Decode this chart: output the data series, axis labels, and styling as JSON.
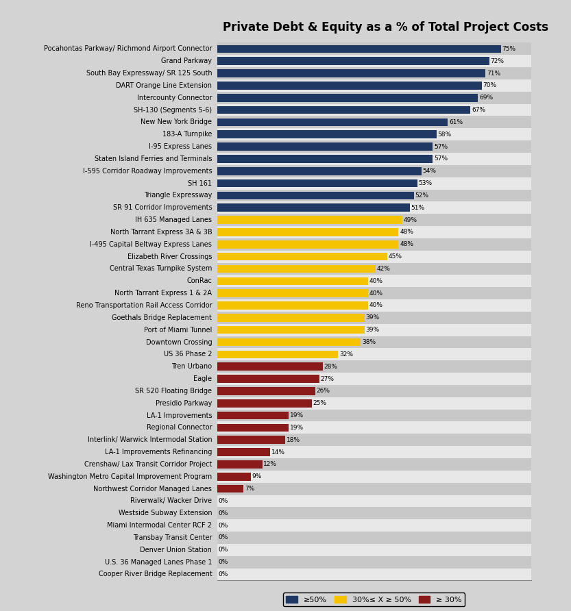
{
  "title": "Private Debt & Equity as a % of Total Project Costs",
  "categories": [
    "Pocahontas Parkway/ Richmond Airport Connector",
    "Grand Parkway",
    "South Bay Expressway/ SR 125 South",
    "DART Orange Line Extension",
    "Intercounty Connector",
    "SH-130 (Segments 5-6)",
    "New New York Bridge",
    "183-A Turnpike",
    "I-95 Express Lanes",
    "Staten Island Ferries and Terminals",
    "I-595 Corridor Roadway Improvements",
    "SH 161",
    "Triangle Expressway",
    "SR 91 Corridor Improvements",
    "IH 635 Managed Lanes",
    "North Tarrant Express 3A & 3B",
    "I-495 Capital Beltway Express Lanes",
    "Elizabeth River Crossings",
    "Central Texas Turnpike System",
    "ConRac",
    "North Tarrant Express 1 & 2A",
    "Reno Transportation Rail Access Corridor",
    "Goethals Bridge Replacement",
    "Port of Miami Tunnel",
    "Downtown Crossing",
    "US 36 Phase 2",
    "Tren Urbano",
    "Eagle",
    "SR 520 Floating Bridge",
    "Presidio Parkway",
    "LA-1 Improvements",
    "Regional Connector",
    "Interlink/ Warwick Intermodal Station",
    "LA-1 Improvements Refinancing",
    "Crenshaw/ Lax Transit Corridor Project",
    "Washington Metro Capital Improvement Program",
    "Northwest Corridor Managed Lanes",
    "Riverwalk/ Wacker Drive",
    "Westside Subway Extension",
    "Miami Intermodal Center RCF 2",
    "Transbay Transit Center",
    "Denver Union Station",
    "U.S. 36 Managed Lanes Phase 1",
    "Cooper River Bridge Replacement"
  ],
  "values": [
    75,
    72,
    71,
    70,
    69,
    67,
    61,
    58,
    57,
    57,
    54,
    53,
    52,
    51,
    49,
    48,
    48,
    45,
    42,
    40,
    40,
    40,
    39,
    39,
    38,
    32,
    28,
    27,
    26,
    25,
    19,
    19,
    18,
    14,
    12,
    9,
    7,
    0,
    0,
    0,
    0,
    0,
    0,
    0
  ],
  "color_ge50": "#1F3864",
  "color_mid": "#F5C400",
  "color_lt30": "#8B1A1A",
  "background_color": "#D3D3D3",
  "plot_bg_color": "#E8E8E8",
  "stripe_color": "#C8C8C8",
  "title_fontsize": 12,
  "label_fontsize": 7,
  "value_fontsize": 6.5,
  "legend_fontsize": 8,
  "figsize": [
    8.33,
    8.92
  ],
  "dpi": 100
}
